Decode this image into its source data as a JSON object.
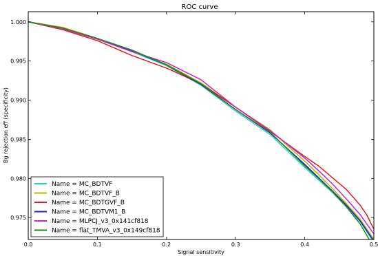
{
  "chart_data": {
    "type": "line",
    "title": "ROC curve",
    "xlabel": "Signal sensitivity",
    "ylabel": "Bg rejection eff (specificity)",
    "xlim": [
      0.0,
      0.5
    ],
    "ylim": [
      0.9722,
      1.0013
    ],
    "xticks": [
      0.0,
      0.1,
      0.2,
      0.3,
      0.4,
      0.5
    ],
    "xtick_labels": [
      "0.0",
      "0.1",
      "0.2",
      "0.3",
      "0.4",
      "0.5"
    ],
    "yticks": [
      0.975,
      0.98,
      0.985,
      0.99,
      0.995,
      1.0
    ],
    "ytick_labels": [
      "0.975",
      "0.980",
      "0.985",
      "0.990",
      "0.995",
      "1.000"
    ],
    "grid": false,
    "legend_position": "lower-left",
    "series": [
      {
        "name": "Name = MC_BDTVF",
        "color": "#33cccc",
        "x": [
          0.0,
          0.05,
          0.1,
          0.15,
          0.2,
          0.25,
          0.3,
          0.35,
          0.4,
          0.42,
          0.44,
          0.46,
          0.48,
          0.5
        ],
        "y": [
          1.0,
          0.9992,
          0.9978,
          0.9962,
          0.9944,
          0.9919,
          0.9886,
          0.9856,
          0.9814,
          0.9798,
          0.9782,
          0.9764,
          0.9745,
          0.9718
        ]
      },
      {
        "name": "Name = MC_BDTVF_B",
        "color": "#b3b300",
        "x": [
          0.0,
          0.05,
          0.1,
          0.15,
          0.2,
          0.25,
          0.3,
          0.35,
          0.4,
          0.42,
          0.44,
          0.46,
          0.48,
          0.5
        ],
        "y": [
          1.0,
          0.9993,
          0.9979,
          0.9963,
          0.9946,
          0.9922,
          0.9891,
          0.9862,
          0.9822,
          0.9805,
          0.9787,
          0.9768,
          0.9748,
          0.9722
        ]
      },
      {
        "name": "Name = MC_BDTGVF_B",
        "color": "#e31a1c",
        "x": [
          0.0,
          0.05,
          0.1,
          0.15,
          0.2,
          0.25,
          0.3,
          0.35,
          0.4,
          0.42,
          0.44,
          0.46,
          0.48,
          0.49,
          0.5
        ],
        "y": [
          1.0,
          0.999,
          0.9976,
          0.9957,
          0.9941,
          0.9921,
          0.9891,
          0.986,
          0.9828,
          0.9816,
          0.9801,
          0.9786,
          0.9766,
          0.9753,
          0.9735
        ]
      },
      {
        "name": "Name = MC_BDTVM1_B",
        "color": "#1f1fbf",
        "x": [
          0.0,
          0.05,
          0.1,
          0.15,
          0.2,
          0.25,
          0.3,
          0.35,
          0.4,
          0.42,
          0.44,
          0.46,
          0.48,
          0.5
        ],
        "y": [
          1.0,
          0.9992,
          0.9978,
          0.9963,
          0.9945,
          0.992,
          0.9888,
          0.9858,
          0.9818,
          0.9801,
          0.9784,
          0.9766,
          0.9746,
          0.972
        ]
      },
      {
        "name": "Name = MLPCJ_v3_0x141cf818",
        "color": "#cc22cc",
        "x": [
          0.0,
          0.05,
          0.1,
          0.15,
          0.2,
          0.25,
          0.3,
          0.35,
          0.4,
          0.42,
          0.44,
          0.46,
          0.48,
          0.5
        ],
        "y": [
          1.0,
          0.9991,
          0.9978,
          0.9962,
          0.9948,
          0.9926,
          0.9891,
          0.9861,
          0.9826,
          0.981,
          0.9793,
          0.9774,
          0.9754,
          0.9729
        ]
      },
      {
        "name": "Name = flat_TMVA_v3_0x149cf818",
        "color": "#1a8c1a",
        "x": [
          0.0,
          0.05,
          0.1,
          0.15,
          0.2,
          0.25,
          0.3,
          0.35,
          0.4,
          0.42,
          0.44,
          0.46,
          0.48,
          0.5
        ],
        "y": [
          1.0,
          0.9992,
          0.9979,
          0.9964,
          0.9945,
          0.9921,
          0.9888,
          0.9859,
          0.9816,
          0.98,
          0.9783,
          0.9764,
          0.9742,
          0.9712
        ]
      }
    ]
  }
}
